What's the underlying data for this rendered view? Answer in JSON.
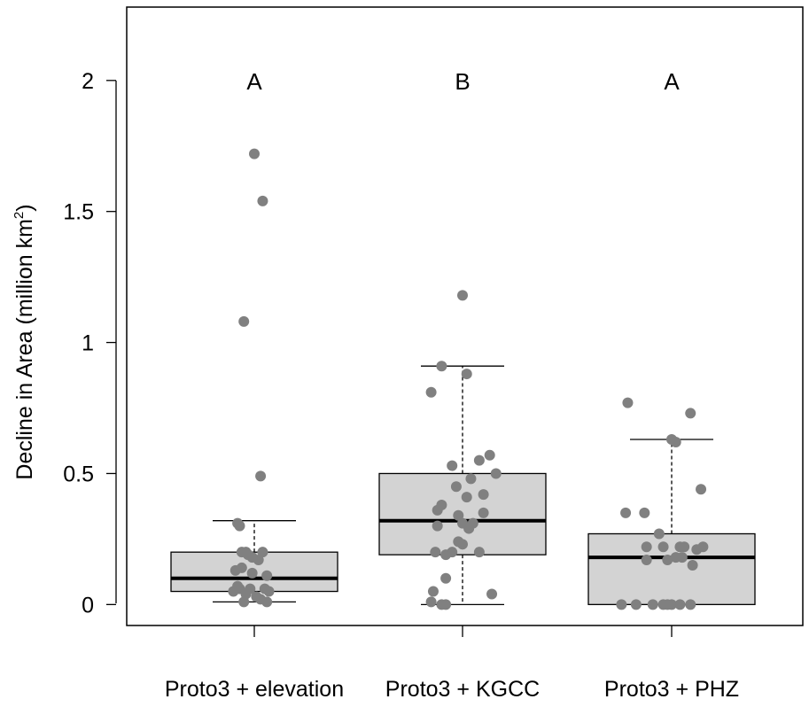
{
  "chart_data": {
    "type": "box",
    "ylabel": "Decline in Area (million km",
    "ylabel_superscript": "2",
    "ylabel_close": ")",
    "ylim": [
      -0.08,
      2.28
    ],
    "y_ticks": [
      0,
      0.5,
      1,
      1.5,
      2
    ],
    "y_tick_labels": [
      "0",
      "0.5",
      "1",
      "1.5",
      "2"
    ],
    "categories": [
      "Proto3 + elevation",
      "Proto3 + KGCC",
      "Proto3 + PHZ"
    ],
    "group_letters": [
      "A",
      "B",
      "A"
    ],
    "grid": false,
    "box_fill": "#d3d3d3",
    "point_color": "#808080",
    "boxes": [
      {
        "name": "Proto3 + elevation",
        "whisker_low": 0.01,
        "q1": 0.05,
        "median": 0.1,
        "q3": 0.2,
        "whisker_high": 0.32,
        "points": [
          [
            0.0,
            1.72
          ],
          [
            0.04,
            1.54
          ],
          [
            -0.05,
            1.08
          ],
          [
            0.03,
            0.49
          ],
          [
            -0.08,
            0.31
          ],
          [
            -0.07,
            0.3
          ],
          [
            -0.06,
            0.2
          ],
          [
            -0.04,
            0.2
          ],
          [
            -0.03,
            0.19
          ],
          [
            0.04,
            0.2
          ],
          [
            -0.01,
            0.18
          ],
          [
            0.02,
            0.17
          ],
          [
            -0.06,
            0.14
          ],
          [
            -0.09,
            0.13
          ],
          [
            -0.01,
            0.12
          ],
          [
            0.06,
            0.11
          ],
          [
            -0.08,
            0.07
          ],
          [
            -0.07,
            0.06
          ],
          [
            -0.02,
            0.06
          ],
          [
            0.05,
            0.06
          ],
          [
            -0.1,
            0.05
          ],
          [
            0.07,
            0.05
          ],
          [
            -0.04,
            0.04
          ],
          [
            0.01,
            0.03
          ],
          [
            0.03,
            0.02
          ],
          [
            0.06,
            0.01
          ],
          [
            -0.05,
            0.01
          ]
        ]
      },
      {
        "name": "Proto3 + KGCC",
        "whisker_low": 0.0,
        "q1": 0.19,
        "median": 0.32,
        "q3": 0.5,
        "whisker_high": 0.91,
        "points": [
          [
            0.0,
            1.18
          ],
          [
            -0.1,
            0.91
          ],
          [
            0.02,
            0.88
          ],
          [
            -0.15,
            0.81
          ],
          [
            0.13,
            0.57
          ],
          [
            0.08,
            0.55
          ],
          [
            -0.05,
            0.53
          ],
          [
            0.16,
            0.5
          ],
          [
            0.04,
            0.48
          ],
          [
            -0.03,
            0.45
          ],
          [
            0.1,
            0.42
          ],
          [
            0.02,
            0.41
          ],
          [
            -0.1,
            0.38
          ],
          [
            -0.12,
            0.36
          ],
          [
            -0.02,
            0.34
          ],
          [
            0.1,
            0.35
          ],
          [
            0.05,
            0.31
          ],
          [
            -0.12,
            0.3
          ],
          [
            0.0,
            0.31
          ],
          [
            0.03,
            0.29
          ],
          [
            -0.02,
            0.24
          ],
          [
            0.0,
            0.23
          ],
          [
            -0.13,
            0.2
          ],
          [
            -0.05,
            0.2
          ],
          [
            0.08,
            0.2
          ],
          [
            -0.08,
            0.19
          ],
          [
            -0.08,
            0.1
          ],
          [
            -0.14,
            0.05
          ],
          [
            0.14,
            0.04
          ],
          [
            -0.15,
            0.01
          ],
          [
            -0.1,
            0.0
          ],
          [
            -0.08,
            0.0
          ]
        ]
      },
      {
        "name": "Proto3 + PHZ",
        "whisker_low": 0.0,
        "q1": 0.0,
        "median": 0.18,
        "q3": 0.27,
        "whisker_high": 0.63,
        "points": [
          [
            -0.21,
            0.77
          ],
          [
            0.09,
            0.73
          ],
          [
            0.0,
            0.63
          ],
          [
            0.02,
            0.62
          ],
          [
            0.14,
            0.44
          ],
          [
            -0.22,
            0.35
          ],
          [
            -0.13,
            0.35
          ],
          [
            -0.06,
            0.27
          ],
          [
            0.06,
            0.22
          ],
          [
            -0.04,
            0.22
          ],
          [
            0.04,
            0.22
          ],
          [
            -0.12,
            0.22
          ],
          [
            0.12,
            0.21
          ],
          [
            0.15,
            0.22
          ],
          [
            0.05,
            0.18
          ],
          [
            -0.12,
            0.17
          ],
          [
            0.02,
            0.18
          ],
          [
            -0.02,
            0.17
          ],
          [
            0.1,
            0.15
          ],
          [
            -0.24,
            0.0
          ],
          [
            -0.17,
            0.0
          ],
          [
            -0.09,
            0.0
          ],
          [
            -0.02,
            0.0
          ],
          [
            0.04,
            0.0
          ],
          [
            0.09,
            0.0
          ],
          [
            -0.04,
            0.0
          ],
          [
            0.0,
            0.0
          ]
        ]
      }
    ]
  }
}
